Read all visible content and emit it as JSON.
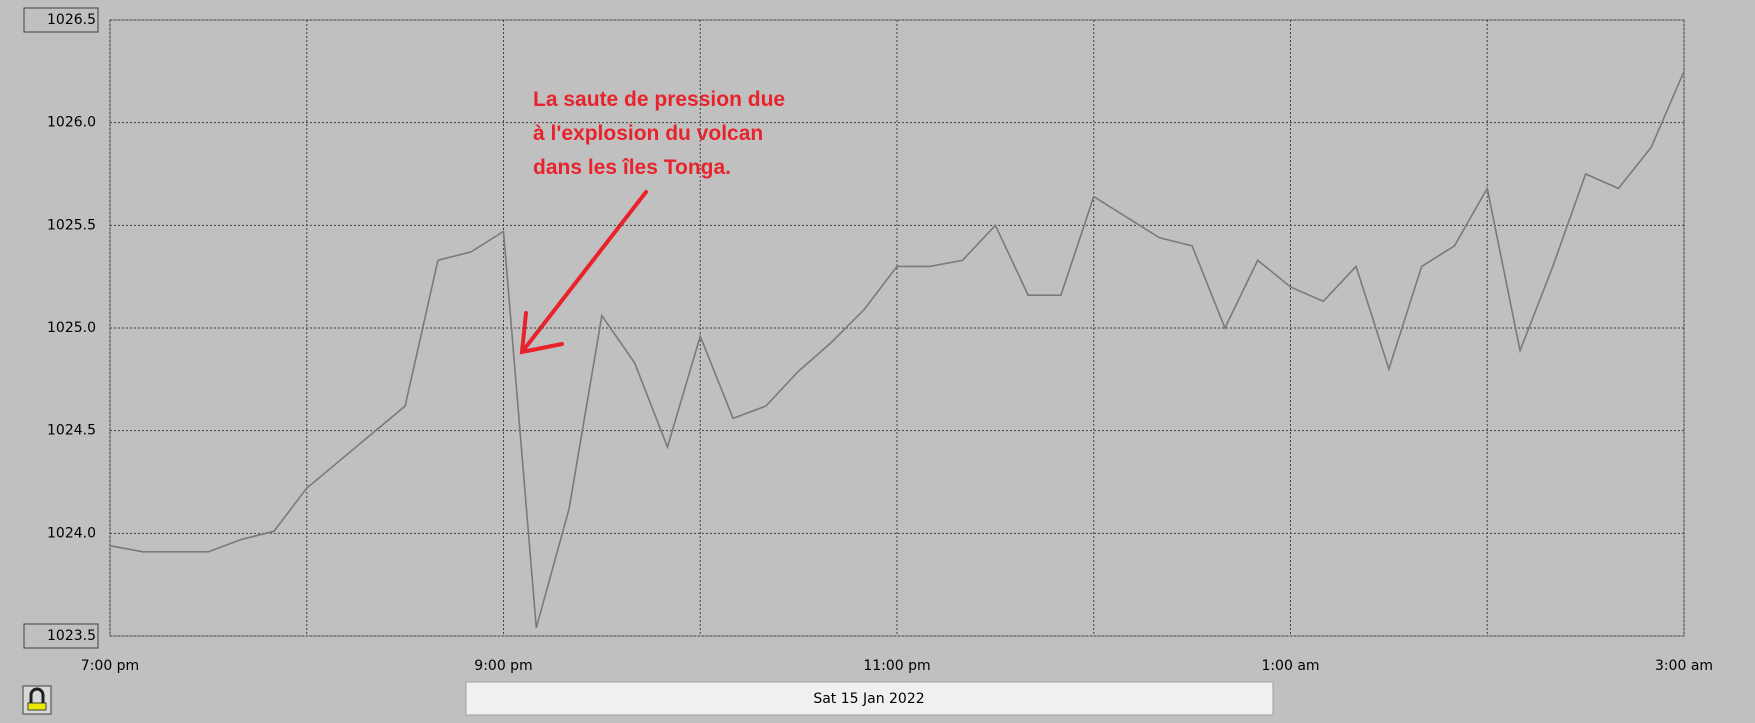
{
  "chart_data": {
    "type": "line",
    "annotation": [
      "La saute de pression due",
      "à l'explosion du volcan",
      "dans les îles Tonga."
    ],
    "date_label": "Sat 15 Jan 2022",
    "x": [
      0,
      10,
      30,
      40,
      50,
      60,
      90,
      100,
      110,
      120,
      130,
      140,
      150,
      160,
      170,
      180,
      190,
      200,
      210,
      220,
      230,
      240,
      250,
      260,
      270,
      280,
      290,
      300,
      320,
      330,
      340,
      350,
      360,
      370,
      380,
      390,
      400,
      410,
      420,
      430,
      440,
      450,
      460,
      470,
      480
    ],
    "series": [
      {
        "color": "#7a7a7a",
        "values": [
          1023.94,
          1023.91,
          1023.91,
          1023.97,
          1024.01,
          1024.22,
          1024.62,
          1025.33,
          1025.37,
          1025.47,
          1023.54,
          1024.12,
          1025.06,
          1024.83,
          1024.42,
          1024.96,
          1024.56,
          1024.62,
          1024.79,
          1024.93,
          1025.09,
          1025.3,
          1025.3,
          1025.33,
          1025.5,
          1025.16,
          1025.16,
          1025.64,
          1025.44,
          1025.4,
          1025.0,
          1025.33,
          1025.2,
          1025.13,
          1025.3,
          1024.8,
          1025.3,
          1025.4,
          1025.68,
          1024.89,
          1025.3,
          1025.75,
          1025.68,
          1025.88,
          1026.25
        ]
      }
    ],
    "xlim": [
      0,
      480
    ],
    "xticks": [
      {
        "value": 0,
        "label": "7:00 pm"
      },
      {
        "value": 60,
        "label": null
      },
      {
        "value": 120,
        "label": "9:00 pm"
      },
      {
        "value": 180,
        "label": null
      },
      {
        "value": 240,
        "label": "11:00 pm"
      },
      {
        "value": 300,
        "label": null
      },
      {
        "value": 360,
        "label": "1:00 am"
      },
      {
        "value": 420,
        "label": null
      },
      {
        "value": 480,
        "label": "3:00 am"
      }
    ],
    "ylim": [
      1023.5,
      1026.5
    ],
    "yticks": [
      1023.5,
      {
        "value": 1024,
        "label": "1024.0"
      },
      1024.5,
      {
        "value": 1025,
        "label": "1025.0"
      },
      1025.5,
      {
        "value": 1026,
        "label": "1026.0"
      },
      1026.5
    ],
    "grid": true
  }
}
